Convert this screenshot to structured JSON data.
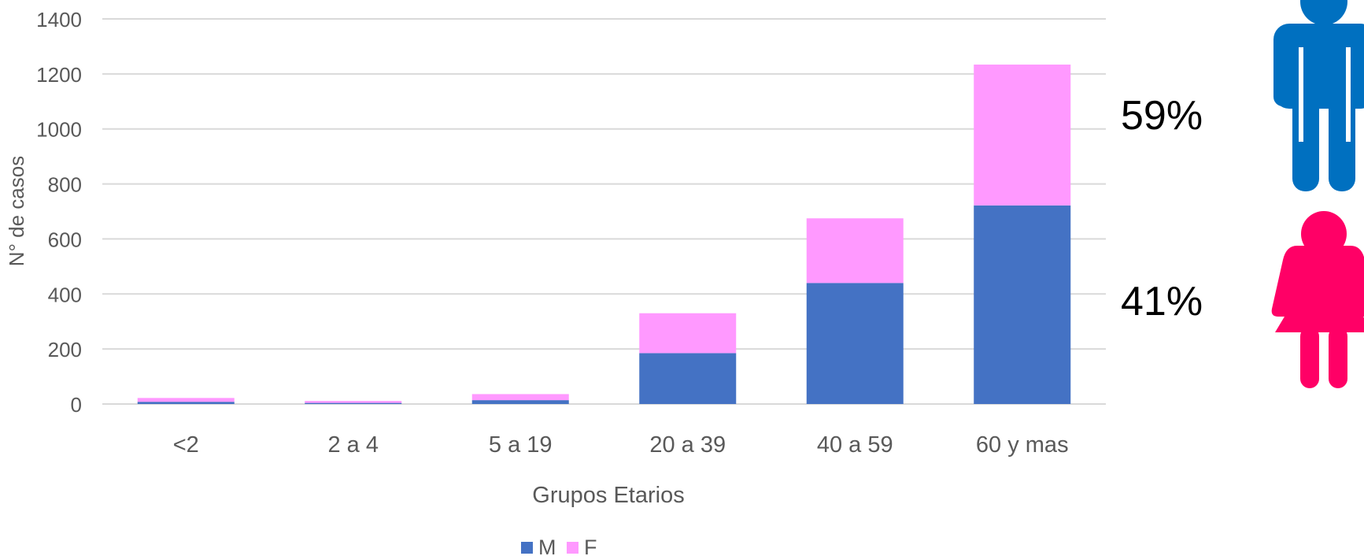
{
  "chart_data": {
    "type": "bar",
    "stacked": true,
    "categories": [
      "<2",
      "2 a 4",
      "5 a 19",
      "20 a 39",
      "40 a 59",
      "60 y mas"
    ],
    "series": [
      {
        "name": "M",
        "color": "#4472C4",
        "values": [
          8,
          4,
          14,
          185,
          440,
          722
        ]
      },
      {
        "name": "F",
        "color": "#FF99FF",
        "values": [
          14,
          7,
          22,
          145,
          235,
          512
        ]
      }
    ],
    "title": "",
    "xlabel": "Grupos Etarios",
    "ylabel": "N° de casos",
    "ylim": [
      0,
      1400
    ],
    "yticks": [
      0,
      200,
      400,
      600,
      800,
      1000,
      1200,
      1400
    ],
    "grid": true,
    "legend_position": "bottom"
  },
  "annotations": {
    "male_percent": "59%",
    "female_percent": "41%",
    "male_icon": "male-person-icon",
    "female_icon": "female-person-icon",
    "male_color": "#0070C0",
    "female_color": "#FF0066"
  }
}
